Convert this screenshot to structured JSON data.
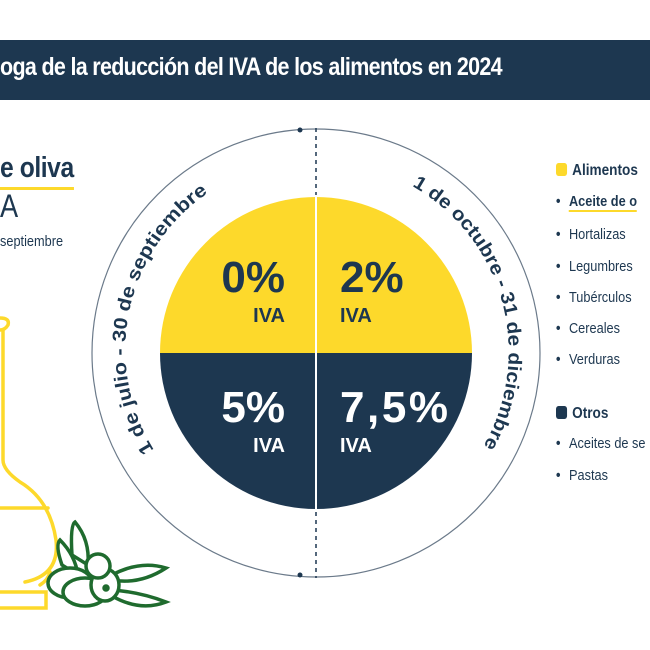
{
  "header": {
    "title": "oga de la reducción del IVA de los alimentos en 2024"
  },
  "left_panel": {
    "title": "e oliva",
    "iva": "A",
    "date": "septiembre"
  },
  "wheel": {
    "left_arc": "1 de julio - 30 de septiembre",
    "right_arc": "1 de octubre - 31 de diciembre",
    "quadrants": [
      {
        "value": "0%",
        "label": "IVA",
        "category": "Alimentos"
      },
      {
        "value": "2%",
        "label": "IVA",
        "category": "Alimentos"
      },
      {
        "value": "5%",
        "label": "IVA",
        "category": "Otros"
      },
      {
        "value": "7,5%",
        "label": "IVA",
        "category": "Otros"
      }
    ]
  },
  "legend": {
    "groups": [
      {
        "title": "Alimentos",
        "color": "#fdd92b",
        "items": [
          "Aceite de o",
          "Hortalizas",
          "Legumbres",
          "Tubérculos",
          "Cereales",
          "Verduras"
        ]
      },
      {
        "title": "Otros",
        "color": "#1d3750",
        "items": [
          "Aceites de se",
          "Pastas"
        ]
      }
    ]
  },
  "colors": {
    "navy": "#1d3750",
    "yellow": "#fdd92b",
    "green": "#1f6b2e"
  }
}
